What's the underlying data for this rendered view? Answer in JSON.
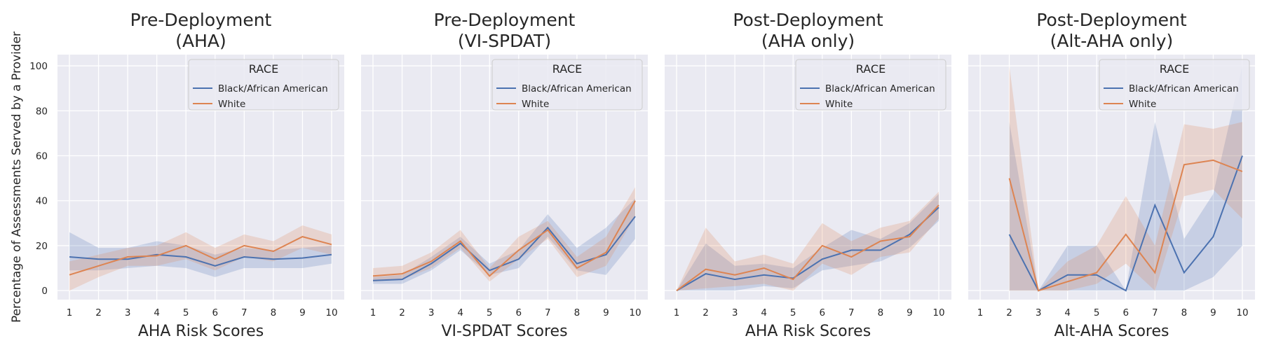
{
  "figure": {
    "ylabel": "Percentage of Assessments Served by a Provider",
    "legend_title": "RACE",
    "colors": {
      "black": "#4c72b0",
      "white": "#dd8452",
      "panel_bg": "#eaeaf2",
      "grid": "#ffffff",
      "text": "#262626"
    }
  },
  "chart_data": [
    {
      "type": "line",
      "title": "Pre-Deployment\n(AHA)",
      "title_lines": [
        "Pre-Deployment",
        "(AHA)"
      ],
      "xlabel": "AHA Risk Scores",
      "ylabel": "Percentage of Assessments Served by a Provider",
      "xlim": [
        1,
        10
      ],
      "ylim": [
        -4,
        105
      ],
      "x_ticks": [
        1,
        2,
        3,
        4,
        5,
        6,
        7,
        8,
        9,
        10
      ],
      "y_ticks": [
        0,
        20,
        40,
        60,
        80,
        100
      ],
      "legend": {
        "title": "RACE",
        "position": "top-right"
      },
      "series": [
        {
          "name": "Black/African American",
          "color": "#4c72b0",
          "x": [
            1,
            2,
            3,
            4,
            5,
            6,
            7,
            8,
            9,
            10
          ],
          "y": [
            15,
            14,
            14,
            16,
            15,
            11,
            15,
            14,
            14.5,
            16
          ],
          "lower": [
            9,
            9,
            10,
            11,
            10,
            6,
            10,
            10,
            10,
            12
          ],
          "upper": [
            26,
            19,
            19,
            22,
            20,
            16,
            19,
            18,
            19,
            20
          ]
        },
        {
          "name": "White",
          "color": "#dd8452",
          "x": [
            1,
            2,
            3,
            4,
            5,
            6,
            7,
            8,
            9,
            10
          ],
          "y": [
            7,
            11,
            15,
            15.5,
            20,
            14,
            20,
            17.5,
            24,
            20.5
          ],
          "lower": [
            0,
            6,
            11,
            11,
            14,
            9,
            15,
            13,
            19,
            16
          ],
          "upper": [
            13,
            16,
            19,
            20,
            26,
            19,
            25,
            22,
            29,
            25
          ]
        }
      ]
    },
    {
      "type": "line",
      "title": "Pre-Deployment\n(VI-SPDAT)",
      "title_lines": [
        "Pre-Deployment",
        "(VI-SPDAT)"
      ],
      "xlabel": "VI-SPDAT Scores",
      "xlim": [
        1,
        10
      ],
      "ylim": [
        -4,
        105
      ],
      "x_ticks": [
        1,
        2,
        3,
        4,
        5,
        6,
        7,
        8,
        9,
        10
      ],
      "y_ticks": [
        0,
        20,
        40,
        60,
        80,
        100
      ],
      "legend": {
        "title": "RACE",
        "position": "top-right"
      },
      "series": [
        {
          "name": "Black/African American",
          "color": "#4c72b0",
          "x": [
            1,
            2,
            3,
            4,
            5,
            6,
            7,
            8,
            9,
            10
          ],
          "y": [
            4.5,
            5,
            12,
            21,
            9,
            14,
            28,
            12,
            16,
            33
          ],
          "lower": [
            3,
            3,
            9,
            18,
            7,
            10,
            24,
            9,
            7,
            23
          ],
          "upper": [
            6,
            7,
            15,
            24,
            12,
            18,
            34,
            19,
            28,
            41
          ]
        },
        {
          "name": "White",
          "color": "#dd8452",
          "x": [
            1,
            2,
            3,
            4,
            5,
            6,
            7,
            8,
            9,
            10
          ],
          "y": [
            6.5,
            7.5,
            13,
            22,
            6.5,
            18,
            27,
            10,
            17,
            40
          ],
          "lower": [
            4,
            5,
            10,
            19,
            4,
            14,
            23,
            6,
            11,
            33
          ],
          "upper": [
            10,
            11,
            17,
            27,
            10,
            24,
            31,
            15,
            24,
            46
          ]
        }
      ]
    },
    {
      "type": "line",
      "title": "Post-Deployment\n(AHA only)",
      "title_lines": [
        "Post-Deployment",
        "(AHA only)"
      ],
      "xlabel": "AHA Risk Scores",
      "xlim": [
        1,
        10
      ],
      "ylim": [
        -4,
        105
      ],
      "x_ticks": [
        1,
        2,
        3,
        4,
        5,
        6,
        7,
        8,
        9,
        10
      ],
      "y_ticks": [
        0,
        20,
        40,
        60,
        80,
        100
      ],
      "legend": {
        "title": "RACE",
        "position": "top-right"
      },
      "series": [
        {
          "name": "Black/African American",
          "color": "#4c72b0",
          "x": [
            1,
            2,
            3,
            4,
            5,
            6,
            7,
            8,
            9,
            10
          ],
          "y": [
            0,
            7.5,
            5,
            7,
            5.5,
            14,
            18,
            18,
            25,
            37
          ],
          "lower": [
            0,
            0,
            0,
            2,
            1,
            9,
            11,
            13,
            19,
            31
          ],
          "upper": [
            0,
            21,
            11,
            12,
            10,
            19,
            27,
            23,
            30,
            43
          ]
        },
        {
          "name": "White",
          "color": "#dd8452",
          "x": [
            1,
            2,
            3,
            4,
            5,
            6,
            7,
            8,
            9,
            10
          ],
          "y": [
            0,
            9.5,
            7,
            10,
            5,
            20,
            15,
            22,
            24,
            38
          ],
          "lower": [
            0,
            1,
            2,
            3,
            0,
            12,
            7,
            15,
            17,
            32
          ],
          "upper": [
            0,
            28,
            13,
            16,
            12,
            30,
            22,
            28,
            31,
            44
          ]
        }
      ]
    },
    {
      "type": "line",
      "title": "Post-Deployment\n(Alt-AHA only)",
      "title_lines": [
        "Post-Deployment",
        "(Alt-AHA only)"
      ],
      "xlabel": "Alt-AHA Scores",
      "xlim": [
        1,
        10
      ],
      "ylim": [
        -4,
        105
      ],
      "x_ticks": [
        1,
        2,
        3,
        4,
        5,
        6,
        7,
        8,
        9,
        10
      ],
      "y_ticks": [
        0,
        20,
        40,
        60,
        80,
        100
      ],
      "legend": {
        "title": "RACE",
        "position": "top-right"
      },
      "series": [
        {
          "name": "Black/African American",
          "color": "#4c72b0",
          "x": [
            2,
            3,
            4,
            5,
            6,
            7,
            8,
            9,
            10
          ],
          "y": [
            25,
            0,
            7,
            7,
            0,
            38,
            8,
            24,
            60
          ],
          "lower": [
            0,
            0,
            0,
            0,
            0,
            0,
            0,
            6,
            20
          ],
          "upper": [
            75,
            0,
            20,
            20,
            0,
            75,
            23,
            43,
            100
          ]
        },
        {
          "name": "White",
          "color": "#dd8452",
          "x": [
            2,
            3,
            4,
            5,
            6,
            7,
            8,
            9,
            10
          ],
          "y": [
            50,
            0,
            4,
            8,
            25,
            8,
            56,
            58,
            53
          ],
          "lower": [
            0,
            0,
            0,
            3,
            12,
            0,
            42,
            45,
            32
          ],
          "upper": [
            100,
            0,
            13,
            20,
            42,
            20,
            74,
            72,
            75
          ]
        }
      ]
    }
  ]
}
